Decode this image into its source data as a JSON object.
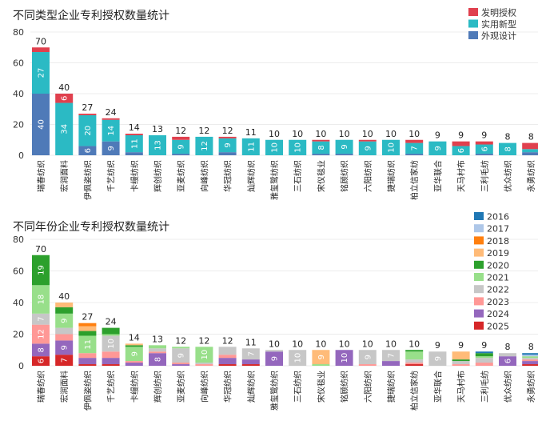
{
  "chart_data": [
    {
      "type": "bar",
      "stacked": true,
      "title": "不同类型企业专利授权数量统计",
      "categories": [
        "瑞春纺织",
        "宏润面料",
        "伊佩姿纺织",
        "千艺纺织",
        "卡缦纺织",
        "辉创纺织",
        "亚麦纺织",
        "向峰纺织",
        "华冠纺织",
        "灿辉纺织",
        "雅玺鹭纺织",
        "三石纺织",
        "宋仪毯业",
        "铭顾纺织",
        "六阳纺织",
        "捷瑞纺织",
        "柏立信家纺",
        "亚华联合",
        "天马村布",
        "三利毛纺",
        "优众纺织",
        "永勇纺织"
      ],
      "ylim": [
        0,
        80
      ],
      "yticks": [
        0,
        20,
        40,
        60,
        80
      ],
      "totals": [
        70,
        40,
        27,
        24,
        14,
        13,
        12,
        12,
        12,
        11,
        10,
        10,
        10,
        10,
        10,
        10,
        10,
        9,
        9,
        9,
        8,
        8
      ],
      "series": [
        {
          "name": "外观设计",
          "color": "#4f7ab8",
          "values": [
            40,
            0,
            6,
            9,
            2,
            0,
            1,
            0,
            2,
            0,
            0,
            0,
            1,
            1,
            0,
            0,
            1,
            0,
            0,
            1,
            0,
            2
          ]
        },
        {
          "name": "实用新型",
          "color": "#2bbac4",
          "values": [
            27,
            34,
            20,
            14,
            11,
            13,
            9,
            12,
            9,
            11,
            10,
            10,
            8,
            9,
            9,
            10,
            7,
            9,
            6,
            6,
            8,
            2
          ]
        },
        {
          "name": "发明授权",
          "color": "#e0404e",
          "values": [
            3,
            6,
            1,
            1,
            1,
            0,
            2,
            0,
            1,
            0,
            0,
            0,
            1,
            0,
            1,
            0,
            2,
            0,
            3,
            2,
            0,
            4
          ]
        }
      ],
      "legend_order": [
        "发明授权",
        "实用新型",
        "外观设计"
      ],
      "legend_position": "top-right"
    },
    {
      "type": "bar",
      "stacked": true,
      "title": "不同年份企业专利授权数量统计",
      "categories": [
        "瑞春纺织",
        "宏润面料",
        "伊佩姿纺织",
        "千艺纺织",
        "卡缦纺织",
        "辉创纺织",
        "亚麦纺织",
        "向峰纺织",
        "华冠纺织",
        "灿辉纺织",
        "雅玺鹭纺织",
        "三石纺织",
        "宋仪毯业",
        "铭顾纺织",
        "六阳纺织",
        "捷瑞纺织",
        "柏立信家纺",
        "亚华联合",
        "天马村布",
        "三利毛纺",
        "优众纺织",
        "永勇纺织"
      ],
      "ylim": [
        0,
        80
      ],
      "yticks": [
        0,
        20,
        40,
        60,
        80
      ],
      "totals": [
        70,
        40,
        27,
        24,
        14,
        13,
        12,
        12,
        12,
        11,
        10,
        10,
        10,
        10,
        10,
        10,
        10,
        9,
        9,
        9,
        8,
        8
      ],
      "series": [
        {
          "name": "2025",
          "color": "#d62728",
          "values": [
            6,
            7,
            1,
            1,
            0,
            0,
            0,
            0,
            1,
            1,
            0,
            0,
            0,
            0,
            0,
            0,
            1,
            0,
            0,
            0,
            0,
            1
          ]
        },
        {
          "name": "2024",
          "color": "#9467bd",
          "values": [
            8,
            9,
            4,
            4,
            2,
            8,
            1,
            0,
            4,
            3,
            9,
            0,
            0,
            10,
            0,
            3,
            0,
            0,
            0,
            0,
            6,
            2
          ]
        },
        {
          "name": "2023",
          "color": "#ff9896",
          "values": [
            12,
            4,
            3,
            4,
            1,
            1,
            1,
            1,
            2,
            0,
            0,
            0,
            0,
            0,
            1,
            0,
            1,
            0,
            1,
            2,
            0,
            1
          ]
        },
        {
          "name": "2022",
          "color": "#c7c7c7",
          "values": [
            7,
            4,
            0,
            10,
            0,
            2,
            9,
            1,
            5,
            7,
            1,
            10,
            0,
            0,
            9,
            7,
            2,
            9,
            2,
            3,
            2,
            1
          ]
        },
        {
          "name": "2021",
          "color": "#98df8a",
          "values": [
            18,
            9,
            11,
            1,
            9,
            2,
            1,
            10,
            0,
            0,
            0,
            0,
            1,
            0,
            0,
            0,
            5,
            0,
            0,
            1,
            0,
            1
          ]
        },
        {
          "name": "2020",
          "color": "#2ca02c",
          "values": [
            19,
            4,
            3,
            4,
            1,
            0,
            0,
            0,
            0,
            0,
            0,
            0,
            0,
            0,
            0,
            0,
            1,
            0,
            1,
            2,
            0,
            0
          ]
        },
        {
          "name": "2019",
          "color": "#ffbb78",
          "values": [
            0,
            3,
            3,
            0,
            1,
            0,
            0,
            0,
            0,
            0,
            0,
            0,
            9,
            0,
            0,
            0,
            0,
            0,
            5,
            0,
            0,
            0
          ]
        },
        {
          "name": "2018",
          "color": "#ff7f0e",
          "values": [
            0,
            0,
            2,
            0,
            0,
            0,
            0,
            0,
            0,
            0,
            0,
            0,
            0,
            0,
            0,
            0,
            0,
            0,
            0,
            0,
            0,
            0
          ]
        },
        {
          "name": "2017",
          "color": "#aec7e8",
          "values": [
            0,
            0,
            0,
            0,
            0,
            0,
            0,
            0,
            0,
            0,
            0,
            0,
            0,
            0,
            0,
            0,
            0,
            0,
            0,
            0,
            0,
            1
          ]
        },
        {
          "name": "2016",
          "color": "#1f77b4",
          "values": [
            0,
            0,
            0,
            0,
            0,
            0,
            0,
            0,
            0,
            0,
            0,
            0,
            0,
            0,
            0,
            0,
            0,
            0,
            0,
            1,
            0,
            1
          ]
        }
      ],
      "legend_order": [
        "2016",
        "2017",
        "2018",
        "2019",
        "2020",
        "2021",
        "2022",
        "2023",
        "2024",
        "2025"
      ],
      "legend_position": "top-right"
    }
  ]
}
